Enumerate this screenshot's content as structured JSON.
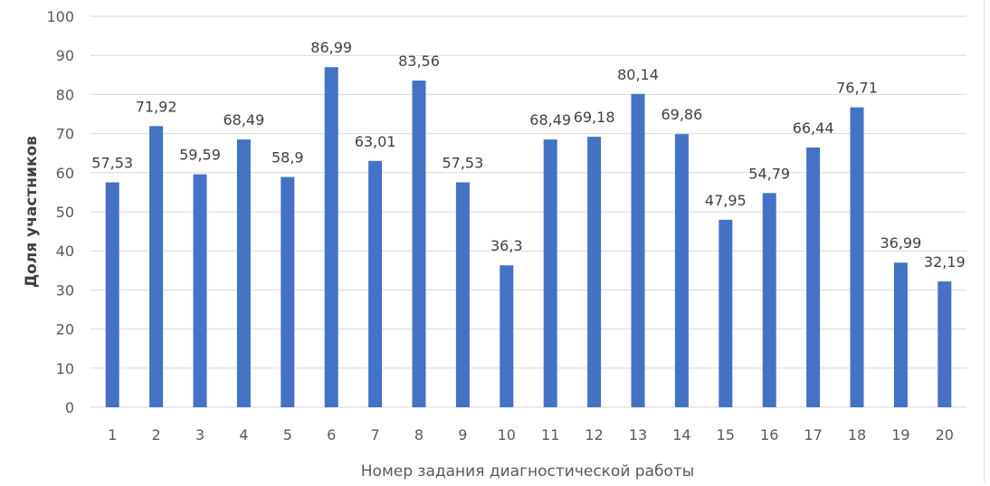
{
  "chart_data": {
    "type": "bar",
    "categories": [
      "1",
      "2",
      "3",
      "4",
      "5",
      "6",
      "7",
      "8",
      "9",
      "10",
      "11",
      "12",
      "13",
      "14",
      "15",
      "16",
      "17",
      "18",
      "19",
      "20"
    ],
    "values": [
      57.53,
      71.92,
      59.59,
      68.49,
      58.9,
      86.99,
      63.01,
      83.56,
      57.53,
      36.3,
      68.49,
      69.18,
      80.14,
      69.86,
      47.95,
      54.79,
      66.44,
      76.71,
      36.99,
      32.19
    ],
    "labels": [
      "57,53",
      "71,92",
      "59,59",
      "68,49",
      "58,9",
      "86,99",
      "63,01",
      "83,56",
      "57,53",
      "36,3",
      "68,49",
      "69,18",
      "80,14",
      "69,86",
      "47,95",
      "54,79",
      "66,44",
      "76,71",
      "36,99",
      "32,19"
    ],
    "title": "",
    "xlabel": "Номер задания диагностической работы",
    "ylabel": "Доля участников",
    "ylim": [
      0,
      100
    ],
    "yticks": [
      0,
      10,
      20,
      30,
      40,
      50,
      60,
      70,
      80,
      90,
      100
    ],
    "grid": true,
    "legend": "none",
    "bar_color": "#4472c4",
    "grid_color": "#d9d9d9"
  }
}
